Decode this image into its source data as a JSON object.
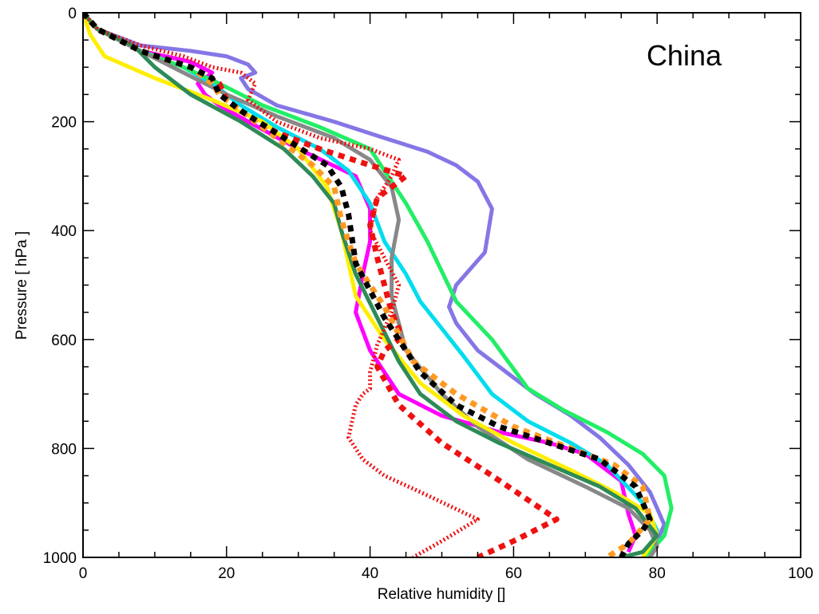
{
  "chart_data": {
    "type": "line",
    "title": "",
    "panel_label": "China",
    "xlabel": "Relative humidity []",
    "ylabel": "Pressure [ hPa ]",
    "xlim": [
      0,
      100
    ],
    "ylim": [
      1000,
      0
    ],
    "x_ticks": [
      0,
      20,
      40,
      60,
      80,
      100
    ],
    "y_ticks": [
      0,
      200,
      400,
      600,
      800,
      1000
    ],
    "grid": false,
    "legend": "none",
    "series": [
      {
        "color": "#8476e6",
        "style": "solid",
        "x": [
          0,
          2,
          8,
          15,
          20,
          23,
          24,
          22,
          23,
          27,
          35,
          42,
          48,
          52,
          55,
          57,
          56,
          52,
          51,
          52,
          55,
          59,
          63,
          68,
          72,
          76,
          79,
          81,
          80,
          78
        ],
        "y": [
          0,
          30,
          60,
          70,
          80,
          95,
          110,
          120,
          140,
          170,
          200,
          230,
          255,
          280,
          310,
          360,
          440,
          500,
          540,
          570,
          620,
          660,
          700,
          740,
          780,
          830,
          880,
          940,
          970,
          1000
        ]
      },
      {
        "color": "#ff00ff",
        "style": "solid",
        "x": [
          0,
          2,
          8,
          15,
          18,
          16,
          17,
          19,
          23,
          30,
          38,
          40,
          40,
          39,
          38,
          40,
          44,
          50,
          58,
          65,
          70,
          75,
          76,
          77,
          76
        ],
        "y": [
          0,
          30,
          70,
          90,
          110,
          130,
          150,
          170,
          200,
          250,
          300,
          360,
          420,
          480,
          550,
          620,
          700,
          740,
          770,
          790,
          810,
          860,
          920,
          960,
          990
        ]
      },
      {
        "color": "#00ddee",
        "style": "solid",
        "x": [
          0,
          2,
          8,
          14,
          18,
          22,
          27,
          33,
          37,
          40,
          42,
          45,
          47,
          50,
          53,
          57,
          62,
          68,
          73,
          78,
          80,
          79
        ],
        "y": [
          0,
          30,
          70,
          100,
          130,
          170,
          210,
          250,
          290,
          350,
          420,
          480,
          530,
          580,
          630,
          700,
          750,
          790,
          830,
          900,
          950,
          1000
        ]
      },
      {
        "color": "#22ee66",
        "style": "solid",
        "x": [
          0,
          2,
          8,
          14,
          19,
          25,
          33,
          40,
          42,
          45,
          48,
          52,
          57,
          62,
          67,
          73,
          78,
          81,
          82,
          81,
          79,
          78
        ],
        "y": [
          0,
          30,
          70,
          100,
          130,
          170,
          210,
          250,
          290,
          350,
          420,
          530,
          600,
          690,
          730,
          770,
          810,
          850,
          910,
          960,
          990,
          1000
        ]
      },
      {
        "color": "#888888",
        "style": "solid",
        "x": [
          0,
          2,
          8,
          14,
          20,
          27,
          35,
          40,
          43,
          44,
          43,
          43,
          45,
          50,
          55,
          62,
          70,
          76,
          79,
          80,
          79
        ],
        "y": [
          0,
          30,
          70,
          110,
          150,
          190,
          230,
          270,
          320,
          380,
          450,
          520,
          620,
          700,
          760,
          820,
          870,
          910,
          950,
          980,
          1000
        ]
      },
      {
        "color": "#ffee00",
        "style": "solid",
        "x": [
          0,
          1,
          3,
          10,
          18,
          25,
          30,
          34,
          35,
          36,
          37,
          38,
          42,
          47,
          53,
          60,
          68,
          74,
          79,
          80,
          78
        ],
        "y": [
          0,
          40,
          80,
          120,
          160,
          200,
          250,
          320,
          360,
          400,
          460,
          520,
          600,
          680,
          740,
          790,
          840,
          880,
          920,
          960,
          1000
        ]
      },
      {
        "color": "#2e8b57",
        "style": "solid",
        "x": [
          0,
          2,
          7,
          10,
          15,
          22,
          28,
          32,
          35,
          36,
          38,
          41,
          44,
          47,
          52,
          58,
          65,
          72,
          77,
          80,
          78,
          75
        ],
        "y": [
          0,
          30,
          60,
          100,
          150,
          200,
          250,
          300,
          350,
          400,
          480,
          560,
          640,
          700,
          750,
          790,
          830,
          870,
          910,
          960,
          990,
          1000
        ]
      },
      {
        "color": "#ee1111",
        "style": "dotted",
        "x": [
          0,
          2,
          8,
          14,
          18,
          22,
          24,
          23,
          27,
          33,
          40,
          44,
          43,
          41,
          40,
          42,
          44,
          43,
          41,
          40,
          40,
          39,
          38,
          37,
          39,
          42,
          47,
          55,
          50,
          46
        ],
        "y": [
          0,
          30,
          60,
          80,
          100,
          110,
          130,
          160,
          200,
          230,
          250,
          270,
          300,
          340,
          400,
          450,
          500,
          550,
          610,
          660,
          690,
          700,
          720,
          780,
          820,
          850,
          880,
          930,
          970,
          1000
        ]
      },
      {
        "color": "#ee1111",
        "style": "dashed",
        "x": [
          0,
          2,
          8,
          15,
          19,
          20,
          23,
          27,
          33,
          40,
          45,
          41,
          40,
          41,
          42,
          43,
          44,
          44,
          42,
          41,
          44,
          50,
          57,
          66,
          60,
          55
        ],
        "y": [
          0,
          30,
          70,
          100,
          130,
          160,
          190,
          220,
          250,
          280,
          300,
          340,
          390,
          450,
          500,
          550,
          580,
          600,
          620,
          650,
          720,
          790,
          850,
          930,
          970,
          1000
        ]
      },
      {
        "color": "#ff9922",
        "style": "dashed",
        "x": [
          0,
          2,
          8,
          15,
          18,
          19,
          21,
          26,
          32,
          35,
          36,
          38,
          42,
          46,
          52,
          60,
          68,
          74,
          78,
          79,
          76,
          73
        ],
        "y": [
          0,
          30,
          70,
          100,
          130,
          150,
          170,
          220,
          280,
          320,
          380,
          460,
          540,
          640,
          700,
          760,
          800,
          830,
          870,
          930,
          975,
          1000
        ]
      },
      {
        "color": "#000000",
        "style": "dashed",
        "x": [
          0,
          2,
          8,
          15,
          18,
          19,
          22,
          28,
          34,
          36,
          37,
          38,
          42,
          47,
          52,
          58,
          65,
          72,
          77,
          79,
          78,
          76,
          75
        ],
        "y": [
          0,
          30,
          70,
          100,
          120,
          150,
          180,
          230,
          280,
          320,
          370,
          460,
          560,
          660,
          720,
          760,
          790,
          820,
          870,
          930,
          950,
          975,
          1000
        ]
      }
    ]
  }
}
